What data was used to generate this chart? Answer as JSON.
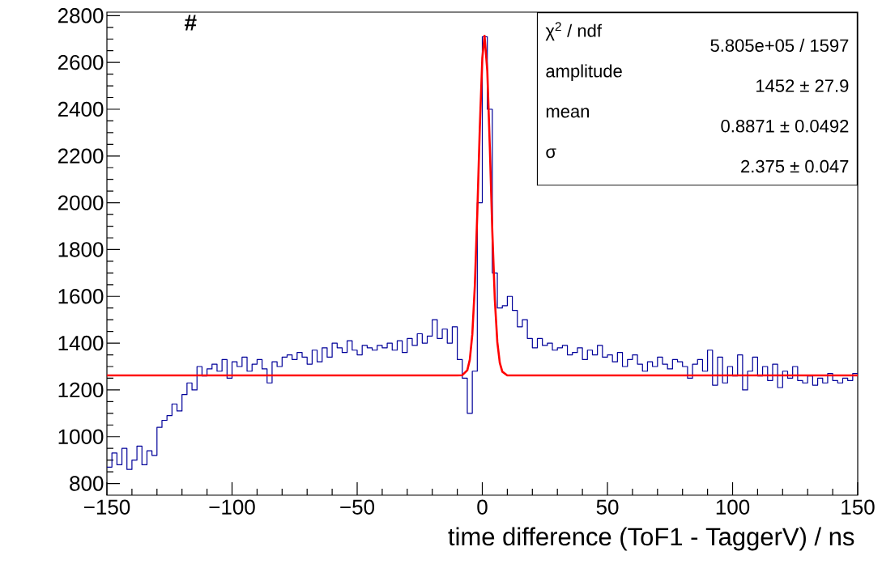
{
  "chart_data": {
    "type": "histogram",
    "xlabel": "time difference (ToF1 - TaggerV) / ns",
    "ylabel": "#",
    "xlim": [
      -150,
      150
    ],
    "ylim": [
      750,
      2815
    ],
    "xticks": [
      {
        "value": -150,
        "label": "−150"
      },
      {
        "value": -100,
        "label": "−100"
      },
      {
        "value": -50,
        "label": "−50"
      },
      0,
      50,
      100,
      150
    ],
    "yticks": [
      800,
      1000,
      1200,
      1400,
      1600,
      1800,
      2000,
      2200,
      2400,
      2600,
      2800
    ],
    "bins": [
      -150,
      -148,
      -146,
      -144,
      -142,
      -140,
      -138,
      -136,
      -134,
      -132,
      -130,
      -128,
      -126,
      -124,
      -122,
      -120,
      -118,
      -116,
      -114,
      -112,
      -110,
      -108,
      -106,
      -104,
      -102,
      -100,
      -98,
      -96,
      -94,
      -92,
      -90,
      -88,
      -86,
      -84,
      -82,
      -80,
      -78,
      -76,
      -74,
      -72,
      -70,
      -68,
      -66,
      -64,
      -62,
      -60,
      -58,
      -56,
      -54,
      -52,
      -50,
      -48,
      -46,
      -44,
      -42,
      -40,
      -38,
      -36,
      -34,
      -32,
      -30,
      -28,
      -26,
      -24,
      -22,
      -20,
      -18,
      -16,
      -14,
      -12,
      -10,
      -8,
      -6,
      -4,
      -2,
      0,
      2,
      4,
      6,
      8,
      10,
      12,
      14,
      16,
      18,
      20,
      22,
      24,
      26,
      28,
      30,
      32,
      34,
      36,
      38,
      40,
      42,
      44,
      46,
      48,
      50,
      52,
      54,
      56,
      58,
      60,
      62,
      64,
      66,
      68,
      70,
      72,
      74,
      76,
      78,
      80,
      82,
      84,
      86,
      88,
      90,
      92,
      94,
      96,
      98,
      100,
      102,
      104,
      106,
      108,
      110,
      112,
      114,
      116,
      118,
      120,
      122,
      124,
      126,
      128,
      130,
      132,
      134,
      136,
      138,
      140,
      142,
      144,
      146,
      148,
      150
    ],
    "series": [
      {
        "color": "#000099",
        "values": [
          870,
          930,
          880,
          950,
          860,
          900,
          960,
          880,
          940,
          920,
          1040,
          1070,
          1090,
          1140,
          1110,
          1180,
          1230,
          1200,
          1300,
          1260,
          1290,
          1310,
          1280,
          1330,
          1250,
          1320,
          1300,
          1340,
          1280,
          1310,
          1330,
          1290,
          1230,
          1320,
          1300,
          1340,
          1350,
          1330,
          1360,
          1340,
          1310,
          1370,
          1320,
          1380,
          1340,
          1400,
          1380,
          1360,
          1410,
          1370,
          1350,
          1390,
          1380,
          1370,
          1390,
          1380,
          1400,
          1370,
          1410,
          1360,
          1420,
          1390,
          1440,
          1400,
          1430,
          1500,
          1420,
          1460,
          1400,
          1470,
          1330,
          1250,
          1100,
          1280,
          2000,
          2710,
          2400,
          1700,
          1550,
          1560,
          1600,
          1540,
          1470,
          1500,
          1420,
          1380,
          1420,
          1390,
          1400,
          1370,
          1380,
          1390,
          1350,
          1360,
          1380,
          1330,
          1370,
          1350,
          1390,
          1340,
          1350,
          1320,
          1360,
          1300,
          1330,
          1350,
          1310,
          1280,
          1320,
          1300,
          1340,
          1310,
          1290,
          1330,
          1320,
          1300,
          1250,
          1310,
          1330,
          1280,
          1370,
          1220,
          1340,
          1230,
          1300,
          1260,
          1350,
          1200,
          1280,
          1340,
          1260,
          1300,
          1240,
          1310,
          1210,
          1280,
          1250,
          1300,
          1240,
          1230,
          1260,
          1220,
          1250,
          1230,
          1270,
          1240,
          1230,
          1250,
          1240,
          1270
        ]
      },
      {
        "type": "line",
        "color": "#ff0000",
        "x": [
          -150,
          -10,
          -8,
          -6,
          -5,
          -4,
          -3,
          -2,
          -1,
          0,
          0.887,
          2,
          3,
          4,
          5,
          6,
          7,
          8,
          10,
          150
        ],
        "values": [
          1262,
          1262,
          1263,
          1284,
          1329,
          1437,
          1642,
          1956,
          2321,
          2617,
          2714,
          2563,
          2239,
          1877,
          1586,
          1404,
          1315,
          1278,
          1262,
          1262
        ]
      }
    ],
    "annotations": [
      "χ$^{2}$ / ndf",
      "5.805e+05 / 1597",
      "amplitude",
      "1452 ± 27.9",
      "mean",
      "0.8871 ± 0.0492",
      "σ",
      "2.375 ± 0.047"
    ]
  }
}
